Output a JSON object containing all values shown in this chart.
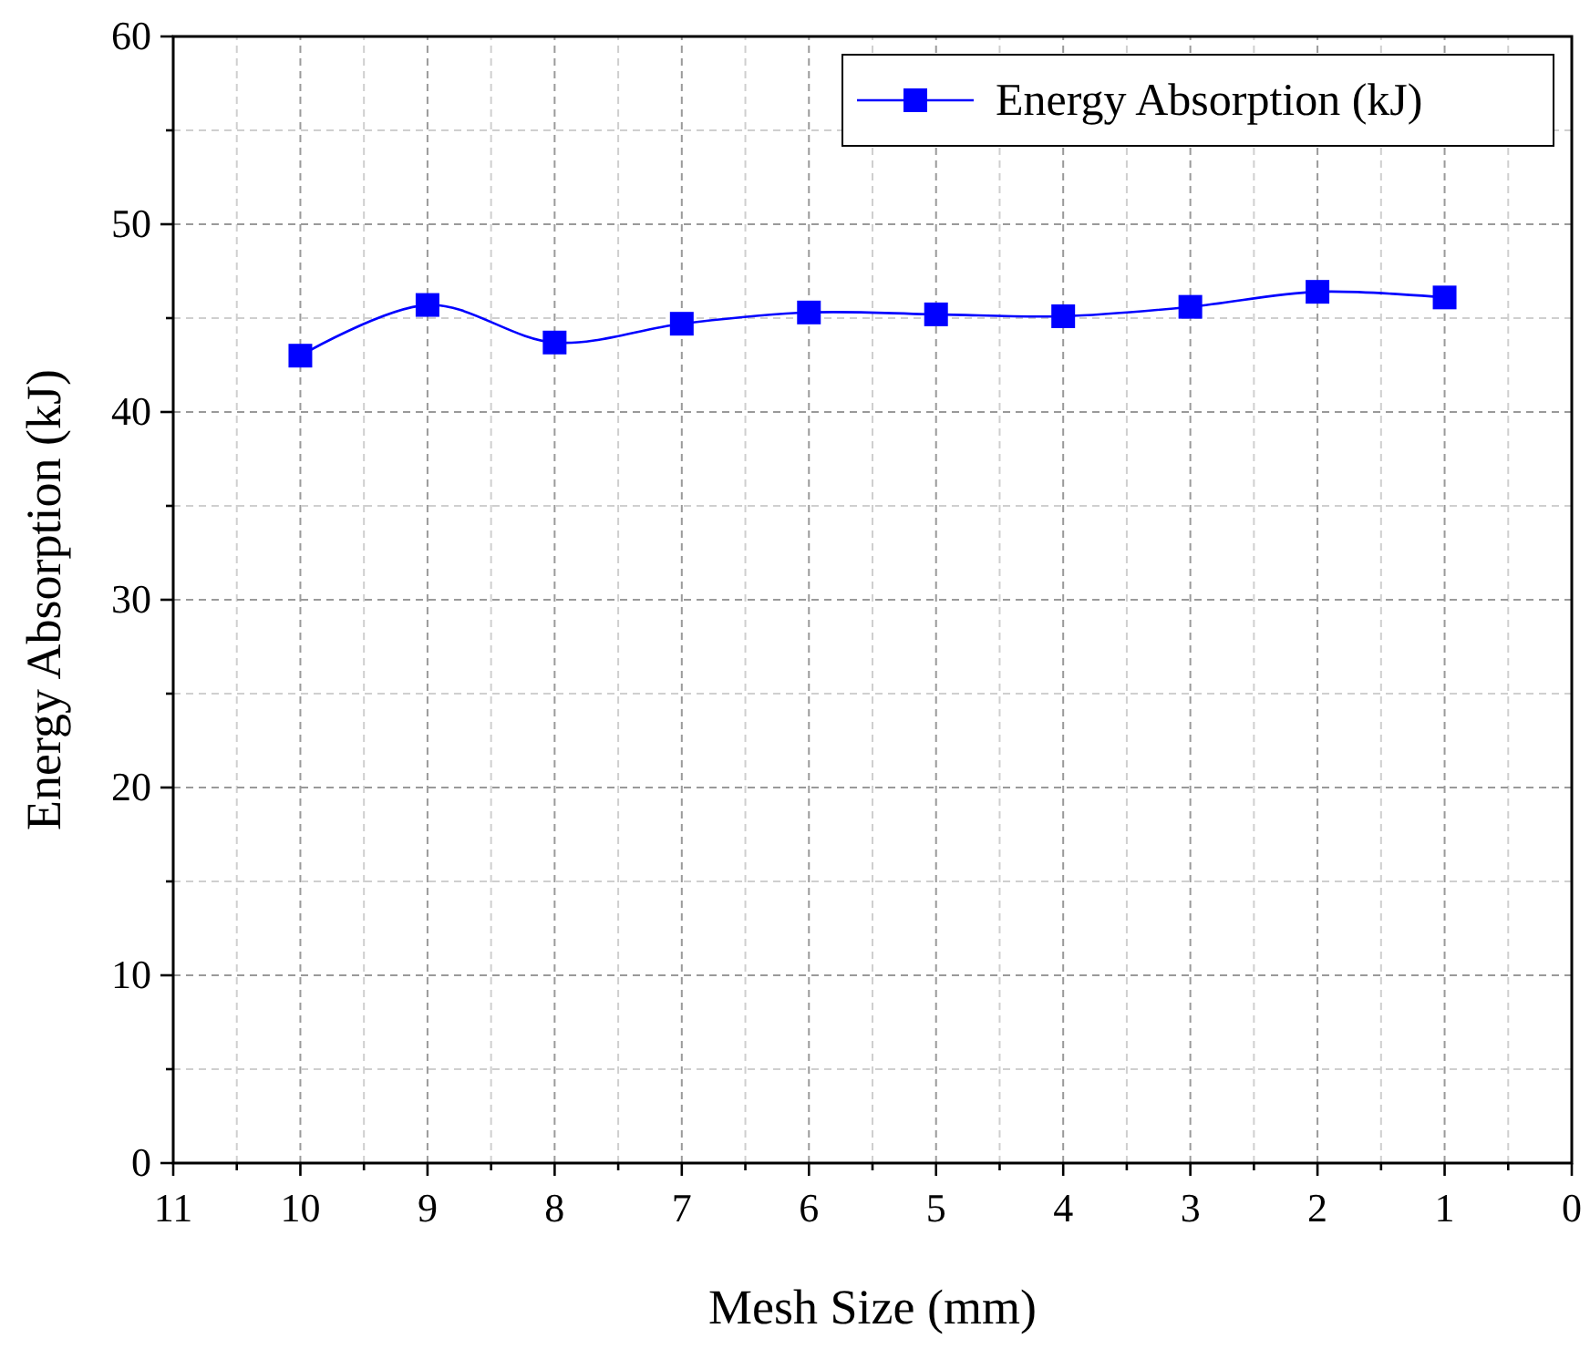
{
  "chart_data": {
    "type": "line",
    "xlabel": "Mesh Size (mm)",
    "ylabel": "Energy Absorption (kJ)",
    "x": [
      10,
      9,
      8,
      7,
      6,
      5,
      4,
      3,
      2,
      1
    ],
    "series": [
      {
        "name": "Energy Absorption (kJ)",
        "color": "#0000ff",
        "values": [
          43.0,
          45.7,
          43.7,
          44.7,
          45.3,
          45.2,
          45.1,
          45.6,
          46.4,
          46.1
        ]
      }
    ],
    "xlim": [
      11,
      0
    ],
    "xticks": [
      11,
      {
        "value": 10.5,
        "label": null
      },
      10,
      {
        "value": 9.5,
        "label": null
      },
      9,
      {
        "value": 8.5,
        "label": null
      },
      8,
      {
        "value": 7.5,
        "label": null
      },
      7,
      {
        "value": 6.5,
        "label": null
      },
      6,
      {
        "value": 5.5,
        "label": null
      },
      5,
      {
        "value": 4.5,
        "label": null
      },
      4,
      {
        "value": 3.5,
        "label": null
      },
      3,
      {
        "value": 2.5,
        "label": null
      },
      2,
      {
        "value": 1.5,
        "label": null
      },
      1,
      {
        "value": 0.5,
        "label": null
      },
      0
    ],
    "ylim": [
      0,
      60
    ],
    "yticks": [
      0,
      {
        "value": 5,
        "label": null
      },
      10,
      {
        "value": 15,
        "label": null
      },
      20,
      {
        "value": 25,
        "label": null
      },
      30,
      {
        "value": 35,
        "label": null
      },
      40,
      {
        "value": 45,
        "label": null
      },
      50,
      {
        "value": 55,
        "label": null
      },
      60
    ],
    "grid": true,
    "legend": "top right",
    "marker": "square",
    "line_style": "solid"
  }
}
